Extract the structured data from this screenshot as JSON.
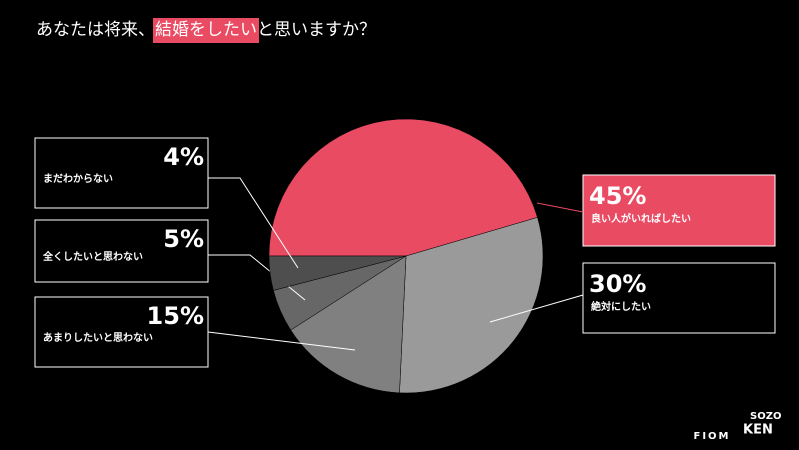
{
  "chart_data": {
    "type": "pie",
    "title_parts": [
      "あなたは将来、",
      "結婚をしたい",
      "と思いますか？"
    ],
    "categories": [
      "良い人がいればしたい",
      "絶対にしたい",
      "あまりしたいと思わない",
      "全くしたいと思わない",
      "まだわからない"
    ],
    "values": [
      45,
      30,
      15,
      5,
      4
    ],
    "value_labels": [
      "45%",
      "30%",
      "15%",
      "5%",
      "4%"
    ],
    "colors": [
      "#e94b63",
      "#9a9a9a",
      "#808080",
      "#676767",
      "#4e4e4e"
    ],
    "highlight_color": "#e94b63"
  },
  "logos": {
    "fiom": "FIOM",
    "sozo": "SOZO",
    "ken": "KEN"
  }
}
